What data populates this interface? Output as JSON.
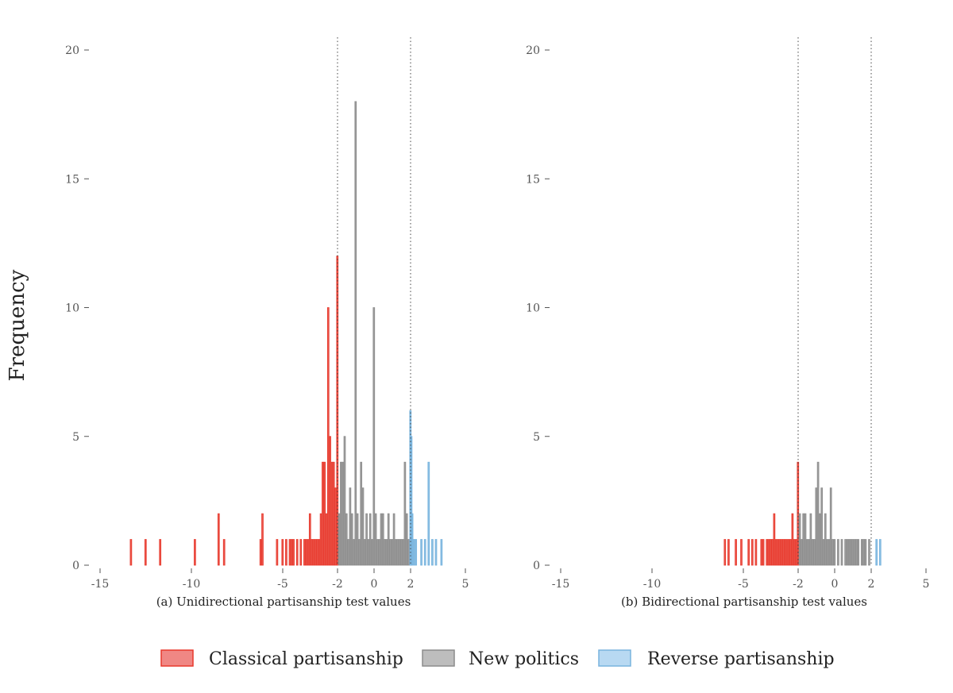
{
  "colors": {
    "classical": "#e8392d",
    "classical_fill": "#f08784",
    "new_politics": "#8c8c8c",
    "new_politics_fill": "#bdbdbd",
    "reverse": "#78b4de",
    "reverse_fill": "#b8d9f2",
    "ref_line": "#444444"
  },
  "chart_data": [
    {
      "type": "bar",
      "caption": "(a) Unidirectional partisanship test values",
      "ylabel": "Frequency",
      "xlim": [
        -15,
        5
      ],
      "ylim": [
        0,
        20
      ],
      "x_ticks": [
        -15,
        -10,
        -5,
        -2,
        0,
        2,
        5
      ],
      "y_ticks": [
        0,
        5,
        10,
        15,
        20
      ],
      "reference_lines": [
        -2,
        2
      ],
      "bin_width": 0.1,
      "series": [
        {
          "name": "Classical partisanship",
          "color_key": "classical",
          "points": [
            [
              -13.3,
              1
            ],
            [
              -12.5,
              1
            ],
            [
              -11.7,
              1
            ],
            [
              -9.8,
              1
            ],
            [
              -8.5,
              2
            ],
            [
              -8.2,
              1
            ],
            [
              -6.2,
              1
            ],
            [
              -6.1,
              2
            ],
            [
              -5.3,
              1
            ],
            [
              -5.0,
              1
            ],
            [
              -4.8,
              1
            ],
            [
              -4.6,
              1
            ],
            [
              -4.5,
              1
            ],
            [
              -4.4,
              1
            ],
            [
              -4.2,
              1
            ],
            [
              -4.0,
              1
            ],
            [
              -3.8,
              1
            ],
            [
              -3.7,
              1
            ],
            [
              -3.6,
              1
            ],
            [
              -3.5,
              2
            ],
            [
              -3.4,
              1
            ],
            [
              -3.3,
              1
            ],
            [
              -3.2,
              1
            ],
            [
              -3.1,
              1
            ],
            [
              -3.0,
              1
            ],
            [
              -2.9,
              2
            ],
            [
              -2.8,
              4
            ],
            [
              -2.7,
              4
            ],
            [
              -2.6,
              2
            ],
            [
              -2.5,
              10
            ],
            [
              -2.4,
              5
            ],
            [
              -2.3,
              4
            ],
            [
              -2.2,
              4
            ],
            [
              -2.1,
              3
            ],
            [
              -2.0,
              12
            ]
          ]
        },
        {
          "name": "New politics",
          "color_key": "new_politics",
          "points": [
            [
              -1.9,
              2
            ],
            [
              -1.8,
              4
            ],
            [
              -1.7,
              4
            ],
            [
              -1.6,
              5
            ],
            [
              -1.5,
              2
            ],
            [
              -1.4,
              1
            ],
            [
              -1.3,
              3
            ],
            [
              -1.2,
              2
            ],
            [
              -1.1,
              1
            ],
            [
              -1.0,
              18
            ],
            [
              -0.9,
              2
            ],
            [
              -0.8,
              1
            ],
            [
              -0.7,
              4
            ],
            [
              -0.6,
              3
            ],
            [
              -0.5,
              1
            ],
            [
              -0.4,
              2
            ],
            [
              -0.3,
              1
            ],
            [
              -0.2,
              2
            ],
            [
              -0.1,
              1
            ],
            [
              0.0,
              10
            ],
            [
              0.1,
              2
            ],
            [
              0.2,
              1
            ],
            [
              0.3,
              1
            ],
            [
              0.4,
              2
            ],
            [
              0.5,
              2
            ],
            [
              0.6,
              1
            ],
            [
              0.7,
              1
            ],
            [
              0.8,
              2
            ],
            [
              0.9,
              1
            ],
            [
              1.0,
              1
            ],
            [
              1.1,
              2
            ],
            [
              1.2,
              1
            ],
            [
              1.3,
              1
            ],
            [
              1.4,
              1
            ],
            [
              1.5,
              1
            ],
            [
              1.6,
              1
            ],
            [
              1.7,
              4
            ],
            [
              1.8,
              2
            ],
            [
              1.9,
              1
            ]
          ]
        },
        {
          "name": "Reverse partisanship",
          "color_key": "reverse",
          "points": [
            [
              2.0,
              6
            ],
            [
              2.05,
              5
            ],
            [
              2.1,
              2
            ],
            [
              2.2,
              1
            ],
            [
              2.3,
              1
            ],
            [
              2.6,
              1
            ],
            [
              2.8,
              1
            ],
            [
              3.0,
              4
            ],
            [
              3.2,
              1
            ],
            [
              3.4,
              1
            ],
            [
              3.7,
              1
            ]
          ]
        }
      ]
    },
    {
      "type": "bar",
      "caption": "(b) Bidirectional partisanship test values",
      "xlim": [
        -15,
        5
      ],
      "ylim": [
        0,
        20
      ],
      "x_ticks": [
        -15,
        -10,
        -5,
        -2,
        0,
        2,
        5
      ],
      "y_ticks": [
        0,
        5,
        10,
        15,
        20
      ],
      "reference_lines": [
        -2,
        2
      ],
      "bin_width": 0.1,
      "series": [
        {
          "name": "Classical partisanship",
          "color_key": "classical",
          "points": [
            [
              -6.0,
              1
            ],
            [
              -5.8,
              1
            ],
            [
              -5.4,
              1
            ],
            [
              -5.1,
              1
            ],
            [
              -4.7,
              1
            ],
            [
              -4.5,
              1
            ],
            [
              -4.3,
              1
            ],
            [
              -4.0,
              1
            ],
            [
              -3.9,
              1
            ],
            [
              -3.7,
              1
            ],
            [
              -3.6,
              1
            ],
            [
              -3.5,
              1
            ],
            [
              -3.4,
              1
            ],
            [
              -3.3,
              2
            ],
            [
              -3.2,
              1
            ],
            [
              -3.1,
              1
            ],
            [
              -3.0,
              1
            ],
            [
              -2.9,
              1
            ],
            [
              -2.8,
              1
            ],
            [
              -2.7,
              1
            ],
            [
              -2.6,
              1
            ],
            [
              -2.5,
              1
            ],
            [
              -2.4,
              1
            ],
            [
              -2.3,
              2
            ],
            [
              -2.2,
              1
            ],
            [
              -2.1,
              1
            ],
            [
              -2.0,
              4
            ]
          ]
        },
        {
          "name": "New politics",
          "color_key": "new_politics",
          "points": [
            [
              -1.9,
              2
            ],
            [
              -1.8,
              1
            ],
            [
              -1.7,
              2
            ],
            [
              -1.6,
              2
            ],
            [
              -1.5,
              1
            ],
            [
              -1.4,
              1
            ],
            [
              -1.3,
              2
            ],
            [
              -1.2,
              1
            ],
            [
              -1.1,
              1
            ],
            [
              -1.0,
              3
            ],
            [
              -0.9,
              4
            ],
            [
              -0.8,
              2
            ],
            [
              -0.7,
              3
            ],
            [
              -0.6,
              1
            ],
            [
              -0.5,
              2
            ],
            [
              -0.4,
              1
            ],
            [
              -0.3,
              1
            ],
            [
              -0.2,
              3
            ],
            [
              -0.1,
              1
            ],
            [
              0.0,
              1
            ],
            [
              0.2,
              1
            ],
            [
              0.4,
              1
            ],
            [
              0.6,
              1
            ],
            [
              0.7,
              1
            ],
            [
              0.8,
              1
            ],
            [
              0.9,
              1
            ],
            [
              1.0,
              1
            ],
            [
              1.1,
              1
            ],
            [
              1.2,
              1
            ],
            [
              1.3,
              1
            ],
            [
              1.5,
              1
            ],
            [
              1.6,
              1
            ],
            [
              1.7,
              1
            ],
            [
              1.9,
              1
            ]
          ]
        },
        {
          "name": "Reverse partisanship",
          "color_key": "reverse",
          "points": [
            [
              2.3,
              1
            ],
            [
              2.5,
              1
            ]
          ]
        }
      ]
    }
  ],
  "legend": {
    "items": [
      {
        "label": "Classical partisanship",
        "color_key": "classical"
      },
      {
        "label": "New politics",
        "color_key": "new_politics"
      },
      {
        "label": "Reverse partisanship",
        "color_key": "reverse"
      }
    ]
  }
}
